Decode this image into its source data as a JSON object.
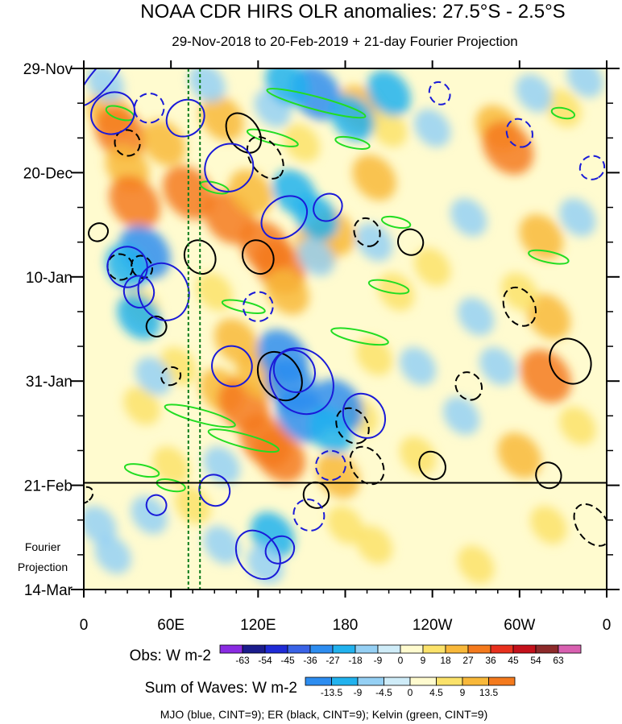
{
  "chart_data": {
    "type": "heatmap",
    "title": "NOAA CDR HIRS OLR anomalies: 27.5°S - 2.5°S",
    "subtitle": "29-Nov-2018 to 20-Feb-2019 + 21-day Fourier Projection",
    "x_tick_labels": [
      "0",
      "60E",
      "120E",
      "180",
      "120W",
      "60W",
      "0"
    ],
    "x_ticks_deg": [
      0,
      60,
      120,
      180,
      240,
      300,
      360
    ],
    "x_range_deg": [
      0,
      360
    ],
    "y_tick_labels": [
      "29-Nov",
      "20-Dec",
      "10-Jan",
      "31-Jan",
      "21-Feb",
      "14-Mar"
    ],
    "y_ticks_day": [
      0,
      21,
      42,
      63,
      84,
      105
    ],
    "y_range_day": [
      0,
      105
    ],
    "projection_start_day": 83.5,
    "projection_label_line1": "Fourier",
    "projection_label_line2": "Projection",
    "reference_lines_deg": [
      72,
      80
    ],
    "obs_colorbar": {
      "label": "Obs: W m-2",
      "levels": [
        "-63",
        "-54",
        "-45",
        "-36",
        "-27",
        "-18",
        "-9",
        "0",
        "9",
        "18",
        "27",
        "36",
        "45",
        "54",
        "63"
      ],
      "colors": [
        "#8a2be2",
        "#1b1c8c",
        "#1f2bd6",
        "#3a63e6",
        "#2d8df0",
        "#21b2ee",
        "#95d0f4",
        "#cfecf8",
        "#fffbcf",
        "#fbe26a",
        "#f8b83a",
        "#f47a1d",
        "#e8311e",
        "#c4111b",
        "#8d2a2a",
        "#d860b0"
      ]
    },
    "waves_colorbar": {
      "label": "Sum of Waves: W m-2",
      "levels": [
        "-13.5",
        "-9",
        "-4.5",
        "0",
        "4.5",
        "9",
        "13.5"
      ],
      "colors": [
        "#2d8df0",
        "#21b2ee",
        "#95d0f4",
        "#cfecf8",
        "#fffbcf",
        "#fbe26a",
        "#f8b83a",
        "#f47a1d"
      ]
    },
    "footer": "MJO (blue, CINT=9); ER (black, CINT=9); Kelvin (green, CINT=9)",
    "anomaly_blobs": [
      {
        "lon": 18,
        "day": 9,
        "v": 2
      },
      {
        "lon": 25,
        "day": 13,
        "v": 3
      },
      {
        "lon": 30,
        "day": 20,
        "v": 2
      },
      {
        "lon": 35,
        "day": 27,
        "v": 3
      },
      {
        "lon": 55,
        "day": 15,
        "v": 2
      },
      {
        "lon": 72,
        "day": 25,
        "v": 3
      },
      {
        "lon": 95,
        "day": 10,
        "v": 2
      },
      {
        "lon": 100,
        "day": 30,
        "v": 3
      },
      {
        "lon": 115,
        "day": 25,
        "v": 2
      },
      {
        "lon": 125,
        "day": 36,
        "v": 3
      },
      {
        "lon": 135,
        "day": 40,
        "v": 3
      },
      {
        "lon": 140,
        "day": 45,
        "v": 2
      },
      {
        "lon": 160,
        "day": 36,
        "v": 2
      },
      {
        "lon": 172,
        "day": 33,
        "v": 2
      },
      {
        "lon": 190,
        "day": 8,
        "v": 2
      },
      {
        "lon": 200,
        "day": 22,
        "v": 2
      },
      {
        "lon": 210,
        "day": 12,
        "v": 1
      },
      {
        "lon": 215,
        "day": 45,
        "v": 1
      },
      {
        "lon": 95,
        "day": 65,
        "v": 2
      },
      {
        "lon": 105,
        "day": 55,
        "v": 2
      },
      {
        "lon": 110,
        "day": 68,
        "v": 3
      },
      {
        "lon": 125,
        "day": 75,
        "v": 3
      },
      {
        "lon": 135,
        "day": 78,
        "v": 3
      },
      {
        "lon": 120,
        "day": 62,
        "v": 2
      },
      {
        "lon": 175,
        "day": 82,
        "v": 2
      },
      {
        "lon": 190,
        "day": 70,
        "v": 1
      },
      {
        "lon": 200,
        "day": 58,
        "v": 1
      },
      {
        "lon": 285,
        "day": 12,
        "v": 2
      },
      {
        "lon": 292,
        "day": 16,
        "v": 3
      },
      {
        "lon": 315,
        "day": 34,
        "v": 2
      },
      {
        "lon": 320,
        "day": 50,
        "v": 2
      },
      {
        "lon": 318,
        "day": 62,
        "v": 3
      },
      {
        "lon": 300,
        "day": 45,
        "v": 1
      },
      {
        "lon": 330,
        "day": 8,
        "v": 1
      },
      {
        "lon": 65,
        "day": 60,
        "v": 1
      },
      {
        "lon": 40,
        "day": 68,
        "v": 1
      },
      {
        "lon": 60,
        "day": 80,
        "v": 1
      },
      {
        "lon": 300,
        "day": 78,
        "v": 2
      },
      {
        "lon": 240,
        "day": 40,
        "v": 1
      },
      {
        "lon": 40,
        "day": 48,
        "v": 1
      },
      {
        "lon": 90,
        "day": 45,
        "v": 1
      },
      {
        "lon": 150,
        "day": 15,
        "v": 1
      },
      {
        "lon": 230,
        "day": 78,
        "v": 1
      },
      {
        "lon": 340,
        "day": 72,
        "v": 1
      },
      {
        "lon": 42,
        "day": 37,
        "v": -3
      },
      {
        "lon": 38,
        "day": 50,
        "v": -2
      },
      {
        "lon": 30,
        "day": 40,
        "v": -2
      },
      {
        "lon": 48,
        "day": 62,
        "v": -1
      },
      {
        "lon": 137,
        "day": 58,
        "v": -3
      },
      {
        "lon": 143,
        "day": 64,
        "v": -3
      },
      {
        "lon": 150,
        "day": 70,
        "v": -3
      },
      {
        "lon": 175,
        "day": 68,
        "v": -3
      },
      {
        "lon": 170,
        "day": 73,
        "v": -2
      },
      {
        "lon": 160,
        "day": 30,
        "v": -2
      },
      {
        "lon": 160,
        "day": 38,
        "v": -1
      },
      {
        "lon": 145,
        "day": 25,
        "v": -2
      },
      {
        "lon": 130,
        "day": 8,
        "v": -1
      },
      {
        "lon": 160,
        "day": 5,
        "v": -3
      },
      {
        "lon": 140,
        "day": 3,
        "v": -2
      },
      {
        "lon": 185,
        "day": 10,
        "v": -2
      },
      {
        "lon": 210,
        "day": 5,
        "v": -2
      },
      {
        "lon": 240,
        "day": 12,
        "v": -1
      },
      {
        "lon": 265,
        "day": 30,
        "v": -1
      },
      {
        "lon": 270,
        "day": 50,
        "v": -1
      },
      {
        "lon": 260,
        "day": 70,
        "v": -1
      },
      {
        "lon": 285,
        "day": 60,
        "v": -1
      },
      {
        "lon": 310,
        "day": 5,
        "v": -1
      },
      {
        "lon": 345,
        "day": 2,
        "v": -1
      },
      {
        "lon": 340,
        "day": 30,
        "v": -1
      },
      {
        "lon": 15,
        "day": 3,
        "v": -1
      },
      {
        "lon": 85,
        "day": 3,
        "v": -1
      },
      {
        "lon": 95,
        "day": 80,
        "v": -1
      },
      {
        "lon": 200,
        "day": 35,
        "v": -1
      },
      {
        "lon": 230,
        "day": 60,
        "v": -1
      },
      {
        "lon": 10,
        "day": 92,
        "v": -1
      },
      {
        "lon": 20,
        "day": 98,
        "v": -1
      },
      {
        "lon": 45,
        "day": 90,
        "v": -1
      },
      {
        "lon": 130,
        "day": 94,
        "v": -2
      },
      {
        "lon": 125,
        "day": 100,
        "v": -1
      },
      {
        "lon": 95,
        "day": 96,
        "v": -1
      },
      {
        "lon": 180,
        "day": 92,
        "v": 1
      },
      {
        "lon": 200,
        "day": 96,
        "v": 1
      },
      {
        "lon": 75,
        "day": 88,
        "v": 1
      },
      {
        "lon": 320,
        "day": 92,
        "v": 1
      },
      {
        "lon": 270,
        "day": 100,
        "v": 1
      }
    ],
    "mjo_ellipses": [
      {
        "lon": 12,
        "day": 2,
        "rx": 7,
        "ry": 7,
        "ang": 40,
        "d": false
      },
      {
        "lon": 20,
        "day": 9,
        "rx": 14,
        "ry": 4.5,
        "ang": 55,
        "d": false
      },
      {
        "lon": 45,
        "day": 8,
        "rx": 10,
        "ry": 3,
        "ang": 55,
        "d": true
      },
      {
        "lon": 70,
        "day": 10,
        "rx": 12,
        "ry": 4,
        "ang": 50,
        "d": false
      },
      {
        "lon": 100,
        "day": 20,
        "rx": 16,
        "ry": 5,
        "ang": 50,
        "d": false
      },
      {
        "lon": 138,
        "day": 30,
        "rx": 13,
        "ry": 5,
        "ang": 52,
        "d": false
      },
      {
        "lon": 168,
        "day": 28,
        "rx": 9,
        "ry": 3,
        "ang": 55,
        "d": false
      },
      {
        "lon": 30,
        "day": 40,
        "rx": 14,
        "ry": 4,
        "ang": 70,
        "d": false
      },
      {
        "lon": 55,
        "day": 45,
        "rx": 20,
        "ry": 5,
        "ang": 70,
        "d": false
      },
      {
        "lon": 38,
        "day": 45,
        "rx": 11,
        "ry": 3,
        "ang": 70,
        "d": false
      },
      {
        "lon": 150,
        "day": 63,
        "rx": 24,
        "ry": 6,
        "ang": 52,
        "d": false
      },
      {
        "lon": 145,
        "day": 61,
        "rx": 15,
        "ry": 4,
        "ang": 52,
        "d": false
      },
      {
        "lon": 102,
        "day": 60,
        "rx": 14,
        "ry": 4,
        "ang": 55,
        "d": false
      },
      {
        "lon": 120,
        "day": 48,
        "rx": 10,
        "ry": 3,
        "ang": 55,
        "d": true
      },
      {
        "lon": 193,
        "day": 70,
        "rx": 16,
        "ry": 4,
        "ang": 55,
        "d": false
      },
      {
        "lon": 170,
        "day": 80,
        "rx": 10,
        "ry": 3,
        "ang": 55,
        "d": true
      },
      {
        "lon": 300,
        "day": 13,
        "rx": 10,
        "ry": 2.5,
        "ang": 60,
        "d": true
      },
      {
        "lon": 350,
        "day": 20,
        "rx": 8,
        "ry": 2.5,
        "ang": 60,
        "d": true
      },
      {
        "lon": 245,
        "day": 5,
        "rx": 8,
        "ry": 2,
        "ang": 60,
        "d": true
      },
      {
        "lon": 90,
        "day": 85,
        "rx": 11,
        "ry": 3,
        "ang": 55,
        "d": false
      },
      {
        "lon": 120,
        "day": 98,
        "rx": 18,
        "ry": 4,
        "ang": 55,
        "d": false
      },
      {
        "lon": 135,
        "day": 97,
        "rx": 9,
        "ry": 3,
        "ang": 55,
        "d": false
      },
      {
        "lon": 50,
        "day": 88,
        "rx": 7,
        "ry": 2,
        "ang": 60,
        "d": false
      },
      {
        "lon": 155,
        "day": 90,
        "rx": 11,
        "ry": 3,
        "ang": 55,
        "d": true
      }
    ],
    "er_ellipses": [
      {
        "lon": 30,
        "day": 15,
        "rx": 9,
        "ry": 2.5,
        "ang": 60,
        "d": true
      },
      {
        "lon": 110,
        "day": 13,
        "rx": 15,
        "ry": 3,
        "ang": 55,
        "d": false
      },
      {
        "lon": 125,
        "day": 18,
        "rx": 16,
        "ry": 3,
        "ang": 55,
        "d": true
      },
      {
        "lon": 10,
        "day": 33,
        "rx": 6,
        "ry": 2,
        "ang": 60,
        "d": false
      },
      {
        "lon": 25,
        "day": 40,
        "rx": 9,
        "ry": 2.5,
        "ang": 60,
        "d": true
      },
      {
        "lon": 40,
        "day": 40,
        "rx": 8,
        "ry": 2,
        "ang": 60,
        "d": true
      },
      {
        "lon": 80,
        "day": 38,
        "rx": 12,
        "ry": 3,
        "ang": 60,
        "d": false
      },
      {
        "lon": 120,
        "day": 38,
        "rx": 12,
        "ry": 3,
        "ang": 60,
        "d": false
      },
      {
        "lon": 195,
        "day": 33,
        "rx": 10,
        "ry": 2.5,
        "ang": 60,
        "d": true
      },
      {
        "lon": 225,
        "day": 35,
        "rx": 9,
        "ry": 2.5,
        "ang": 60,
        "d": false
      },
      {
        "lon": 50,
        "day": 52,
        "rx": 7,
        "ry": 2,
        "ang": 60,
        "d": false
      },
      {
        "lon": 60,
        "day": 62,
        "rx": 6,
        "ry": 2,
        "ang": 60,
        "d": true
      },
      {
        "lon": 135,
        "day": 62,
        "rx": 18,
        "ry": 4,
        "ang": 55,
        "d": false
      },
      {
        "lon": 185,
        "day": 72,
        "rx": 13,
        "ry": 3,
        "ang": 55,
        "d": true
      },
      {
        "lon": 195,
        "day": 80,
        "rx": 14,
        "ry": 3,
        "ang": 55,
        "d": true
      },
      {
        "lon": 300,
        "day": 48,
        "rx": 14,
        "ry": 3,
        "ang": 62,
        "d": true
      },
      {
        "lon": 335,
        "day": 59,
        "rx": 16,
        "ry": 4,
        "ang": 62,
        "d": false
      },
      {
        "lon": 265,
        "day": 64,
        "rx": 10,
        "ry": 2.5,
        "ang": 55,
        "d": true
      },
      {
        "lon": 320,
        "day": 82,
        "rx": 9,
        "ry": 2.5,
        "ang": 55,
        "d": false
      },
      {
        "lon": 240,
        "day": 80,
        "rx": 10,
        "ry": 2.5,
        "ang": 55,
        "d": false
      },
      {
        "lon": 350,
        "day": 92,
        "rx": 16,
        "ry": 3,
        "ang": 55,
        "d": true
      },
      {
        "lon": 0,
        "day": 86,
        "rx": 5,
        "ry": 2,
        "ang": 55,
        "d": true
      },
      {
        "lon": 160,
        "day": 86,
        "rx": 9,
        "ry": 2.5,
        "ang": 55,
        "d": false
      }
    ],
    "kelvin_ellipses": [
      {
        "lon": 25,
        "day": 9,
        "rx": 10,
        "ry": 1.2,
        "ang": 18,
        "d": false
      },
      {
        "lon": 160,
        "day": 7,
        "rx": 35,
        "ry": 1.3,
        "ang": 15,
        "d": false
      },
      {
        "lon": 130,
        "day": 14,
        "rx": 18,
        "ry": 1.1,
        "ang": 15,
        "d": false
      },
      {
        "lon": 185,
        "day": 15,
        "rx": 12,
        "ry": 1.0,
        "ang": 12,
        "d": false
      },
      {
        "lon": 90,
        "day": 24,
        "rx": 10,
        "ry": 1.0,
        "ang": 15,
        "d": false
      },
      {
        "lon": 215,
        "day": 31,
        "rx": 10,
        "ry": 1.0,
        "ang": 12,
        "d": false
      },
      {
        "lon": 210,
        "day": 44,
        "rx": 14,
        "ry": 1.1,
        "ang": 12,
        "d": false
      },
      {
        "lon": 320,
        "day": 38,
        "rx": 14,
        "ry": 1.1,
        "ang": 12,
        "d": false
      },
      {
        "lon": 110,
        "day": 48,
        "rx": 15,
        "ry": 1.0,
        "ang": 12,
        "d": false
      },
      {
        "lon": 190,
        "day": 54,
        "rx": 20,
        "ry": 1.2,
        "ang": 12,
        "d": false
      },
      {
        "lon": 80,
        "day": 70,
        "rx": 25,
        "ry": 1.3,
        "ang": 15,
        "d": false
      },
      {
        "lon": 110,
        "day": 75,
        "rx": 25,
        "ry": 1.3,
        "ang": 15,
        "d": false
      },
      {
        "lon": 40,
        "day": 81,
        "rx": 12,
        "ry": 1.1,
        "ang": 12,
        "d": false
      },
      {
        "lon": 330,
        "day": 9,
        "rx": 8,
        "ry": 1.0,
        "ang": 12,
        "d": false
      },
      {
        "lon": 60,
        "day": 84,
        "rx": 10,
        "ry": 1.1,
        "ang": 12,
        "d": false
      }
    ]
  }
}
